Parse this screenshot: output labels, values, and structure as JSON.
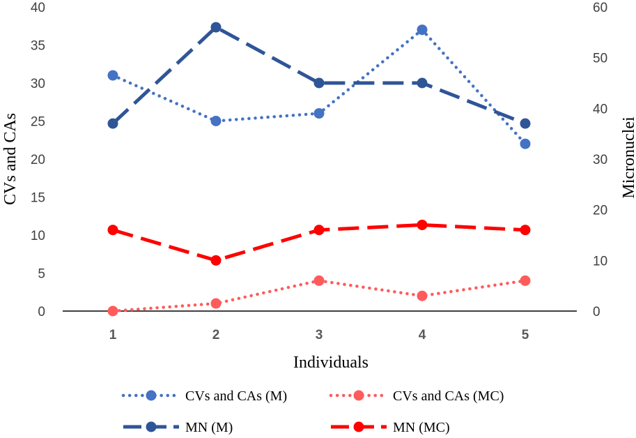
{
  "chart_data": {
    "type": "line",
    "x": [
      "1",
      "2",
      "3",
      "4",
      "5"
    ],
    "xlabel": "Individuals",
    "ylabel_left": "CVs and CAs",
    "ylabel_right": "Micronuclei",
    "ylim_left": [
      0,
      40
    ],
    "ylim_right": [
      0,
      60
    ],
    "yticks_left": [
      "0",
      "5",
      "10",
      "15",
      "20",
      "25",
      "30",
      "35",
      "40"
    ],
    "yticks_right": [
      "0",
      "10",
      "20",
      "30",
      "40",
      "50",
      "60"
    ],
    "series": [
      {
        "name": "CVs and CAs (M)",
        "axis": "left",
        "values": [
          31,
          25,
          26,
          37,
          22
        ],
        "color": "#4472C4",
        "dash": "dotted"
      },
      {
        "name": "CVs and CAs (MC)",
        "axis": "left",
        "values": [
          0,
          1,
          4,
          2,
          4
        ],
        "color": "#FF5B5B",
        "dash": "dotted"
      },
      {
        "name": "MN (M)",
        "axis": "right",
        "values": [
          37,
          56,
          45,
          45,
          37
        ],
        "color": "#2F5597",
        "dash": "dashed"
      },
      {
        "name": "MN (MC)",
        "axis": "right",
        "values": [
          16,
          10,
          16,
          17,
          16
        ],
        "color": "#FF0000",
        "dash": "dashed"
      }
    ],
    "legend_position": "bottom"
  }
}
